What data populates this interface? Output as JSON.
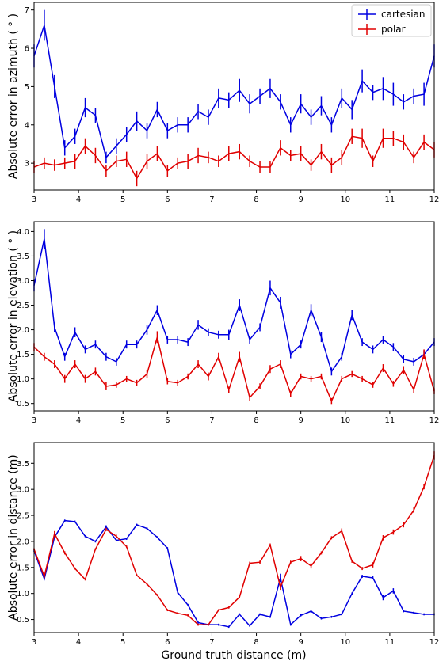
{
  "colors": {
    "cartesian": "#0000e0",
    "polar": "#e00000",
    "axes": "#000000"
  },
  "xlabel": "Ground truth distance (m)",
  "legend": {
    "placement": "top-right",
    "entries": [
      "cartesian",
      "polar"
    ]
  },
  "chart_data": [
    {
      "type": "line",
      "ylabel": "Absolute error in azimuth ( ° )",
      "xlim": [
        3,
        12
      ],
      "ylim": [
        2.3,
        7.2
      ],
      "xticks": [
        3,
        4,
        5,
        6,
        7,
        8,
        9,
        10,
        11,
        12
      ],
      "yticks": [
        3,
        4,
        5,
        6,
        7
      ],
      "grid": false,
      "legend_placement": "top-right",
      "x": [
        3.0,
        3.23,
        3.46,
        3.69,
        3.92,
        4.15,
        4.38,
        4.62,
        4.85,
        5.08,
        5.31,
        5.54,
        5.77,
        6.0,
        6.23,
        6.46,
        6.69,
        6.92,
        7.15,
        7.38,
        7.62,
        7.85,
        8.08,
        8.31,
        8.54,
        8.77,
        9.0,
        9.23,
        9.46,
        9.69,
        9.92,
        10.15,
        10.38,
        10.62,
        10.85,
        11.08,
        11.31,
        11.54,
        11.77,
        12.0
      ],
      "series": [
        {
          "name": "cartesian",
          "values": [
            5.8,
            6.6,
            5.0,
            3.4,
            3.7,
            4.45,
            4.25,
            3.15,
            3.45,
            3.75,
            4.1,
            3.85,
            4.4,
            3.85,
            4.0,
            4.0,
            4.35,
            4.2,
            4.7,
            4.65,
            4.9,
            4.55,
            4.75,
            4.95,
            4.6,
            4.0,
            4.55,
            4.2,
            4.5,
            4.0,
            4.7,
            4.4,
            5.15,
            4.85,
            4.95,
            4.8,
            4.6,
            4.75,
            4.8,
            5.8
          ],
          "errors": [
            0.3,
            0.4,
            0.3,
            0.2,
            0.2,
            0.25,
            0.2,
            0.15,
            0.2,
            0.2,
            0.25,
            0.2,
            0.2,
            0.2,
            0.2,
            0.2,
            0.2,
            0.2,
            0.25,
            0.2,
            0.3,
            0.25,
            0.2,
            0.25,
            0.2,
            0.2,
            0.25,
            0.2,
            0.25,
            0.2,
            0.25,
            0.25,
            0.3,
            0.2,
            0.3,
            0.3,
            0.2,
            0.2,
            0.3,
            0.3
          ]
        },
        {
          "name": "polar",
          "values": [
            2.9,
            3.0,
            2.95,
            3.0,
            3.05,
            3.45,
            3.2,
            2.8,
            3.05,
            3.1,
            2.6,
            3.05,
            3.25,
            2.8,
            3.0,
            3.05,
            3.2,
            3.15,
            3.05,
            3.25,
            3.3,
            3.05,
            2.9,
            2.9,
            3.4,
            3.2,
            3.25,
            2.95,
            3.3,
            2.95,
            3.15,
            3.7,
            3.65,
            3.05,
            3.65,
            3.65,
            3.55,
            3.15,
            3.55,
            3.35
          ],
          "errors": [
            0.15,
            0.15,
            0.15,
            0.15,
            0.2,
            0.2,
            0.2,
            0.15,
            0.15,
            0.2,
            0.2,
            0.2,
            0.2,
            0.15,
            0.15,
            0.2,
            0.2,
            0.15,
            0.15,
            0.2,
            0.2,
            0.15,
            0.15,
            0.15,
            0.2,
            0.15,
            0.2,
            0.15,
            0.2,
            0.2,
            0.2,
            0.2,
            0.25,
            0.15,
            0.25,
            0.2,
            0.2,
            0.15,
            0.2,
            0.2
          ]
        }
      ]
    },
    {
      "type": "line",
      "ylabel": "Absolute error in elevation ( ° )",
      "xlim": [
        3,
        12
      ],
      "ylim": [
        0.35,
        4.2
      ],
      "xticks": [
        3,
        4,
        5,
        6,
        7,
        8,
        9,
        10,
        11,
        12
      ],
      "yticks": [
        0.5,
        1.0,
        1.5,
        2.0,
        2.5,
        3.0,
        3.5,
        4.0
      ],
      "grid": false,
      "x": [
        3.0,
        3.23,
        3.46,
        3.69,
        3.92,
        4.15,
        4.38,
        4.62,
        4.85,
        5.08,
        5.31,
        5.54,
        5.77,
        6.0,
        6.23,
        6.46,
        6.69,
        6.92,
        7.15,
        7.38,
        7.62,
        7.85,
        8.08,
        8.31,
        8.54,
        8.77,
        9.0,
        9.23,
        9.46,
        9.69,
        9.92,
        10.15,
        10.38,
        10.62,
        10.85,
        11.08,
        11.31,
        11.54,
        11.77,
        12.0
      ],
      "series": [
        {
          "name": "cartesian",
          "values": [
            2.9,
            3.85,
            2.05,
            1.45,
            1.95,
            1.6,
            1.7,
            1.45,
            1.35,
            1.7,
            1.7,
            2.0,
            2.4,
            1.8,
            1.8,
            1.75,
            2.1,
            1.95,
            1.9,
            1.9,
            2.5,
            1.8,
            2.05,
            2.85,
            2.55,
            1.5,
            1.7,
            2.4,
            1.85,
            1.15,
            1.45,
            2.3,
            1.75,
            1.6,
            1.8,
            1.65,
            1.4,
            1.35,
            1.5,
            1.75
          ],
          "errors": [
            0.12,
            0.2,
            0.1,
            0.08,
            0.1,
            0.08,
            0.08,
            0.08,
            0.08,
            0.08,
            0.08,
            0.1,
            0.1,
            0.08,
            0.08,
            0.08,
            0.1,
            0.08,
            0.08,
            0.1,
            0.12,
            0.08,
            0.08,
            0.15,
            0.12,
            0.08,
            0.08,
            0.12,
            0.1,
            0.08,
            0.08,
            0.1,
            0.08,
            0.08,
            0.08,
            0.08,
            0.08,
            0.08,
            0.08,
            0.08
          ]
        },
        {
          "name": "polar",
          "values": [
            1.65,
            1.45,
            1.3,
            1.0,
            1.3,
            1.0,
            1.15,
            0.85,
            0.88,
            1.0,
            0.92,
            1.1,
            1.85,
            0.95,
            0.92,
            1.05,
            1.3,
            1.05,
            1.45,
            0.78,
            1.45,
            0.62,
            0.85,
            1.2,
            1.3,
            0.7,
            1.05,
            1.0,
            1.05,
            0.55,
            1.0,
            1.1,
            1.0,
            0.88,
            1.22,
            0.9,
            1.18,
            0.78,
            1.5,
            0.75
          ],
          "errors": [
            0.08,
            0.08,
            0.08,
            0.08,
            0.08,
            0.08,
            0.08,
            0.08,
            0.06,
            0.06,
            0.06,
            0.08,
            0.12,
            0.06,
            0.06,
            0.06,
            0.08,
            0.08,
            0.08,
            0.06,
            0.1,
            0.06,
            0.06,
            0.08,
            0.08,
            0.06,
            0.06,
            0.06,
            0.06,
            0.06,
            0.06,
            0.06,
            0.06,
            0.06,
            0.08,
            0.06,
            0.08,
            0.06,
            0.1,
            0.06
          ]
        }
      ]
    },
    {
      "type": "line",
      "ylabel": "Absolute error in distance (m)",
      "xlim": [
        3,
        12
      ],
      "ylim": [
        0.25,
        3.9
      ],
      "xticks": [
        3,
        4,
        5,
        6,
        7,
        8,
        9,
        10,
        11,
        12
      ],
      "yticks": [
        0.5,
        1.0,
        1.5,
        2.0,
        2.5,
        3.0,
        3.5
      ],
      "grid": false,
      "x": [
        3.0,
        3.23,
        3.46,
        3.69,
        3.92,
        4.15,
        4.38,
        4.62,
        4.85,
        5.08,
        5.31,
        5.54,
        5.77,
        6.0,
        6.23,
        6.46,
        6.69,
        6.92,
        7.15,
        7.38,
        7.62,
        7.85,
        8.08,
        8.31,
        8.54,
        8.77,
        9.0,
        9.23,
        9.46,
        9.69,
        9.92,
        10.15,
        10.38,
        10.62,
        10.85,
        11.08,
        11.31,
        11.54,
        11.77,
        12.0
      ],
      "series": [
        {
          "name": "cartesian",
          "values": [
            1.82,
            1.28,
            2.08,
            2.4,
            2.38,
            2.1,
            2.0,
            2.28,
            2.02,
            2.05,
            2.32,
            2.25,
            2.08,
            1.87,
            1.02,
            0.78,
            0.44,
            0.4,
            0.4,
            0.36,
            0.6,
            0.38,
            0.6,
            0.55,
            1.3,
            0.4,
            0.58,
            0.66,
            0.52,
            0.55,
            0.6,
            1.0,
            1.33,
            1.3,
            0.92,
            1.05,
            0.66,
            0.63,
            0.6,
            0.6
          ],
          "errors": [
            0.02,
            0.02,
            0.02,
            0.02,
            0.02,
            0.02,
            0.02,
            0.03,
            0.02,
            0.02,
            0.02,
            0.02,
            0.02,
            0.02,
            0.02,
            0.02,
            0.02,
            0.02,
            0.02,
            0.02,
            0.02,
            0.02,
            0.02,
            0.02,
            0.08,
            0.02,
            0.02,
            0.03,
            0.02,
            0.02,
            0.02,
            0.02,
            0.03,
            0.03,
            0.05,
            0.05,
            0.02,
            0.02,
            0.02,
            0.02
          ]
        },
        {
          "name": "polar",
          "values": [
            1.85,
            1.33,
            2.15,
            1.78,
            1.48,
            1.27,
            1.85,
            2.23,
            2.1,
            1.9,
            1.35,
            1.18,
            0.97,
            0.68,
            0.62,
            0.58,
            0.4,
            0.4,
            0.68,
            0.73,
            0.93,
            1.58,
            1.6,
            1.93,
            1.12,
            1.6,
            1.67,
            1.53,
            1.78,
            2.07,
            2.2,
            1.62,
            1.48,
            1.55,
            2.07,
            2.18,
            2.32,
            2.6,
            3.05,
            3.65
          ],
          "errors": [
            0.02,
            0.03,
            0.05,
            0.03,
            0.02,
            0.02,
            0.02,
            0.03,
            0.03,
            0.02,
            0.02,
            0.02,
            0.02,
            0.02,
            0.02,
            0.02,
            0.02,
            0.02,
            0.02,
            0.02,
            0.02,
            0.03,
            0.03,
            0.03,
            0.05,
            0.03,
            0.05,
            0.05,
            0.03,
            0.03,
            0.05,
            0.03,
            0.03,
            0.05,
            0.05,
            0.05,
            0.05,
            0.05,
            0.05,
            0.08
          ]
        }
      ]
    }
  ]
}
